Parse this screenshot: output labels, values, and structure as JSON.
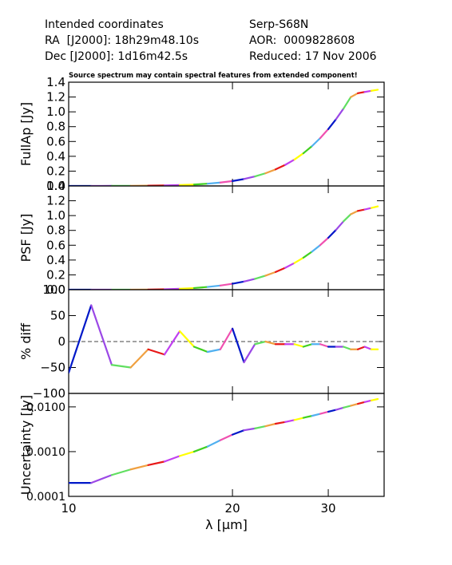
{
  "header": {
    "left": [
      "Intended coordinates",
      "RA  [J2000]: 18h29m48.10s",
      "Dec [J2000]: 1d16m42.5s"
    ],
    "right": [
      "Serp-S68N",
      "AOR:  0009828608",
      "Reduced: 17 Nov 2006"
    ]
  },
  "note": "Source spectrum may contain spectral features from extended component!",
  "x_axis": {
    "label": "λ [μm]",
    "scale": "log",
    "range": [
      10,
      38
    ],
    "ticks": [
      10,
      20,
      30
    ],
    "tick_labels": [
      "10",
      "20",
      "30"
    ]
  },
  "palette": [
    "#0018c8",
    "#9b48e6",
    "#60df60",
    "#f0a040",
    "#e81818",
    "#c040f0",
    "#ffff00",
    "#40d020",
    "#50b0f0",
    "#f050b0"
  ],
  "panels": [
    {
      "ylabel": "FullAp [Jy]",
      "scale": "linear",
      "ylim": [
        0,
        1.4
      ],
      "ticks": [
        0,
        0.2,
        0.4,
        0.6,
        0.8,
        1.0,
        1.2,
        1.4
      ],
      "tick_labels": [
        "0.0",
        "0.2",
        "0.4",
        "0.6",
        "0.8",
        "1.0",
        "1.2",
        "1.4"
      ]
    },
    {
      "ylabel": "PSF [Jy]",
      "scale": "linear",
      "ylim": [
        0,
        1.4
      ],
      "ticks": [
        0,
        0.2,
        0.4,
        0.6,
        0.8,
        1.0,
        1.2,
        1.4
      ],
      "tick_labels": [
        "0.0",
        "0.2",
        "0.4",
        "0.6",
        "0.8",
        "1.0",
        "1.2",
        "1.4"
      ]
    },
    {
      "ylabel": "% diff",
      "scale": "linear",
      "ylim": [
        -100,
        100
      ],
      "ticks": [
        -100,
        -50,
        0,
        50,
        100
      ],
      "tick_labels": [
        "−100",
        "−50",
        "0",
        "50",
        "100"
      ],
      "zero_line": true
    },
    {
      "ylabel": "Uncertainty [Jy]",
      "scale": "log",
      "ylim": [
        0.0001,
        0.02
      ],
      "ticks": [
        0.0001,
        0.001,
        0.01
      ],
      "tick_labels": [
        "0.0001",
        "0.0010",
        "0.0100"
      ]
    }
  ],
  "chart_data": {
    "type": "line",
    "title": "",
    "xlabel": "λ [μm]",
    "xlim": [
      10,
      38
    ],
    "series": [
      {
        "panel": "FullAp [Jy]",
        "x": [
          10.0,
          11.0,
          12.0,
          13.0,
          14.0,
          15.0,
          16.0,
          17.0,
          18.0,
          19.0,
          20.0,
          21.0,
          22.0,
          23.0,
          24.0,
          25.0,
          26.0,
          27.0,
          28.0,
          29.0,
          30.0,
          31.0,
          32.0,
          33.0,
          34.0,
          35.0,
          36.0,
          37.0
        ],
        "y": [
          0.0,
          0.0,
          0.001,
          0.002,
          0.004,
          0.007,
          0.012,
          0.019,
          0.03,
          0.046,
          0.066,
          0.093,
          0.128,
          0.171,
          0.223,
          0.284,
          0.356,
          0.441,
          0.537,
          0.646,
          0.767,
          0.9,
          1.044,
          1.199,
          1.251,
          1.268,
          1.284,
          1.298
        ]
      },
      {
        "panel": "PSF [Jy]",
        "x": [
          10.0,
          11.0,
          12.0,
          13.0,
          14.0,
          15.0,
          16.0,
          17.0,
          18.0,
          19.0,
          20.0,
          21.0,
          22.0,
          23.0,
          24.0,
          25.0,
          26.0,
          27.0,
          28.0,
          29.0,
          30.0,
          31.0,
          32.0,
          33.0,
          34.0,
          35.0,
          36.0,
          37.0
        ],
        "y": [
          0.0,
          0.0,
          0.0,
          0.0,
          0.001,
          0.005,
          0.012,
          0.022,
          0.037,
          0.056,
          0.08,
          0.11,
          0.146,
          0.189,
          0.238,
          0.295,
          0.36,
          0.432,
          0.513,
          0.602,
          0.7,
          0.807,
          0.923,
          1.018,
          1.063,
          1.082,
          1.103,
          1.124
        ]
      },
      {
        "panel": "% diff",
        "x": [
          10.0,
          11.0,
          12.0,
          13.0,
          14.0,
          15.0,
          16.0,
          17.0,
          18.0,
          19.0,
          20.0,
          21.0,
          22.0,
          23.0,
          24.0,
          25.0,
          26.0,
          27.0,
          28.0,
          29.0,
          30.0,
          31.0,
          32.0,
          33.0,
          34.0,
          35.0,
          36.0,
          37.0
        ],
        "y": [
          -60,
          70,
          -45,
          -50,
          -15,
          -25,
          20,
          -10,
          -20,
          -15,
          25,
          -40,
          -5,
          0,
          -5,
          -5,
          -5,
          -10,
          -5,
          -5,
          -10,
          -10,
          -10,
          -15,
          -15,
          -10,
          -15,
          -15
        ]
      },
      {
        "panel": "Uncertainty [Jy]",
        "x": [
          10.0,
          11.0,
          12.0,
          13.0,
          14.0,
          15.0,
          16.0,
          17.0,
          18.0,
          19.0,
          20.0,
          21.0,
          22.0,
          23.0,
          24.0,
          25.0,
          26.0,
          27.0,
          28.0,
          29.0,
          30.0,
          31.0,
          32.0,
          33.0,
          34.0,
          35.0,
          36.0,
          37.0
        ],
        "y": [
          0.0002,
          0.0002,
          0.0003,
          0.0004,
          0.0005,
          0.0006,
          0.0008,
          0.001,
          0.0013,
          0.0018,
          0.0024,
          0.003,
          0.0033,
          0.0037,
          0.0042,
          0.0046,
          0.0051,
          0.0057,
          0.0063,
          0.007,
          0.0078,
          0.0086,
          0.0096,
          0.0106,
          0.0117,
          0.0128,
          0.0139,
          0.015
        ]
      }
    ]
  }
}
